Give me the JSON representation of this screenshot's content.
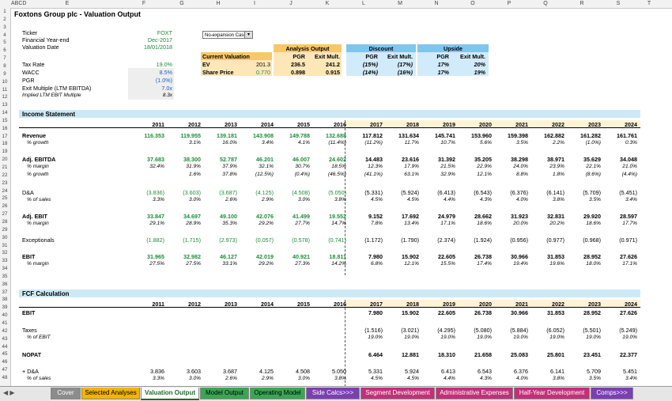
{
  "column_headers": [
    "A",
    "B",
    "C",
    "D",
    "E",
    "F",
    "G",
    "H",
    "I",
    "J",
    "K",
    "L",
    "M",
    "N",
    "O",
    "P",
    "Q",
    "R",
    "S",
    "T"
  ],
  "column_header_labels": [
    "ABCD",
    "E",
    "F",
    "G",
    "H",
    "I",
    "J",
    "K",
    "L",
    "M",
    "N",
    "O",
    "P",
    "Q",
    "R",
    "S",
    "T"
  ],
  "row_numbers": [
    "1",
    "2",
    "3",
    "4",
    "5",
    "6",
    "7",
    "8",
    "9",
    "10",
    "11",
    "12",
    "13",
    "14",
    "15",
    "16",
    "17",
    "18",
    "19",
    "20",
    "21",
    "22",
    "23",
    "24",
    "25",
    "26",
    "27",
    "28",
    "29",
    "30",
    "31",
    "32",
    "33",
    "34",
    "35",
    "36",
    "37",
    "38",
    "39",
    "40",
    "41",
    "42",
    "43",
    "44",
    "45",
    "46",
    "47",
    "48"
  ],
  "title": "Foxtons Group plc - Valuation Output",
  "info": {
    "ticker_label": "Ticker",
    "ticker": "FOXT",
    "fy_label": "Financial Year-end",
    "fy": "Dec-2017",
    "vd_label": "Valuation Date",
    "vd": "18/01/2018",
    "tax_label": "Tax Rate",
    "tax": "19.0%",
    "wacc_label": "WACC",
    "wacc": "8.5%",
    "pgr_label": "PGR",
    "pgr": "(1.0%)",
    "exit_label": "Exit Multiple (LTM EBITDA)",
    "exit": "7.0x",
    "implied_label": "Implied LTM EBIT Multiple",
    "implied": "8.3x"
  },
  "scenario_dropdown": "No-expansion Case",
  "valuation": {
    "current_label": "Current Valuation",
    "ev_label": "EV",
    "ev": "201.3",
    "sp_label": "Share Price",
    "sp": "0.770",
    "analysis_header": "Analysis Output",
    "discount_header": "Discount",
    "upside_header": "Upside",
    "pgr_col": "PGR",
    "exit_col": "Exit Mult.",
    "a_ev_pgr": "236.5",
    "a_ev_exit": "241.2",
    "a_sp_pgr": "0.898",
    "a_sp_exit": "0.915",
    "d_ev_pgr": "(15%)",
    "d_ev_exit": "(17%)",
    "d_sp_pgr": "(14%)",
    "d_sp_exit": "(16%)",
    "u_ev_pgr": "17%",
    "u_ev_exit": "20%",
    "u_sp_pgr": "17%",
    "u_sp_exit": "19%"
  },
  "income_statement": {
    "title": "Income Statement",
    "years": [
      "2011",
      "2012",
      "2013",
      "2014",
      "2015",
      "2016",
      "2017",
      "2018",
      "2019",
      "2020",
      "2021",
      "2022",
      "2023",
      "2024"
    ],
    "rows": [
      {
        "label": "Revenue",
        "bold": true,
        "vals": [
          "116.353",
          "119.955",
          "139.181",
          "143.908",
          "149.788",
          "132.688",
          "117.812",
          "131.634",
          "145.741",
          "153.960",
          "159.398",
          "162.882",
          "161.282",
          "161.761"
        ]
      },
      {
        "label": "% growth",
        "italic": true,
        "vals": [
          "",
          "3.1%",
          "16.0%",
          "3.4%",
          "4.1%",
          "(11.4%)",
          "(11.2%)",
          "11.7%",
          "10.7%",
          "5.6%",
          "3.5%",
          "2.2%",
          "(1.0%)",
          "0.3%"
        ]
      },
      {
        "label": "Adj. EBITDA",
        "bold": true,
        "vals": [
          "37.683",
          "38.300",
          "52.787",
          "46.201",
          "46.007",
          "24.602",
          "14.483",
          "23.616",
          "31.392",
          "35.205",
          "38.298",
          "38.971",
          "35.629",
          "34.048"
        ]
      },
      {
        "label": "% margin",
        "italic": true,
        "vals": [
          "32.4%",
          "31.9%",
          "37.9%",
          "32.1%",
          "30.7%",
          "18.5%",
          "12.3%",
          "17.9%",
          "21.5%",
          "22.9%",
          "24.0%",
          "23.9%",
          "22.1%",
          "21.0%"
        ]
      },
      {
        "label": "% growth",
        "italic": true,
        "vals": [
          "",
          "1.6%",
          "37.8%",
          "(12.5%)",
          "(0.4%)",
          "(46.5%)",
          "(41.1%)",
          "63.1%",
          "32.9%",
          "12.1%",
          "8.8%",
          "1.8%",
          "(8.6%)",
          "(4.4%)"
        ]
      },
      {
        "label": "D&A",
        "vals": [
          "(3.836)",
          "(3.603)",
          "(3.687)",
          "(4.125)",
          "(4.508)",
          "(5.050)",
          "(5.331)",
          "(5.924)",
          "(6.413)",
          "(6.543)",
          "(6.376)",
          "(6.141)",
          "(5.709)",
          "(5.451)"
        ]
      },
      {
        "label": "% of sales",
        "italic": true,
        "vals": [
          "3.3%",
          "3.0%",
          "2.6%",
          "2.9%",
          "3.0%",
          "3.8%",
          "4.5%",
          "4.5%",
          "4.4%",
          "4.3%",
          "4.0%",
          "3.8%",
          "3.5%",
          "3.4%"
        ]
      },
      {
        "label": "Adj. EBIT",
        "bold": true,
        "vals": [
          "33.847",
          "34.697",
          "49.100",
          "42.076",
          "41.499",
          "19.552",
          "9.152",
          "17.692",
          "24.979",
          "28.662",
          "31.923",
          "32.831",
          "29.920",
          "28.597"
        ]
      },
      {
        "label": "% margin",
        "italic": true,
        "vals": [
          "29.1%",
          "28.9%",
          "35.3%",
          "29.2%",
          "27.7%",
          "14.7%",
          "7.8%",
          "13.4%",
          "17.1%",
          "18.6%",
          "20.0%",
          "20.2%",
          "18.6%",
          "17.7%"
        ]
      },
      {
        "label": "Exceptionals",
        "vals": [
          "(1.882)",
          "(1.715)",
          "(2.973)",
          "(0.057)",
          "(0.578)",
          "(0.741)",
          "(1.172)",
          "(1.790)",
          "(2.374)",
          "(1.924)",
          "(0.956)",
          "(0.977)",
          "(0.968)",
          "(0.971)"
        ]
      },
      {
        "label": "EBIT",
        "bold": true,
        "vals": [
          "31.965",
          "32.982",
          "46.127",
          "42.019",
          "40.921",
          "18.811",
          "7.980",
          "15.902",
          "22.605",
          "26.738",
          "30.966",
          "31.853",
          "28.952",
          "27.626"
        ]
      },
      {
        "label": "% margin",
        "italic": true,
        "vals": [
          "27.5%",
          "27.5%",
          "33.1%",
          "29.2%",
          "27.3%",
          "14.2%",
          "6.8%",
          "12.1%",
          "15.5%",
          "17.4%",
          "19.4%",
          "19.6%",
          "18.0%",
          "17.1%"
        ]
      }
    ]
  },
  "fcf": {
    "title": "FCF Calculation",
    "years": [
      "2011",
      "2012",
      "2013",
      "2014",
      "2015",
      "2016",
      "2017",
      "2018",
      "2019",
      "2020",
      "2021",
      "2022",
      "2023",
      "2024"
    ],
    "rows": [
      {
        "label": "EBIT",
        "bold": true,
        "vals": [
          "",
          "",
          "",
          "",
          "",
          "",
          "7.980",
          "15.902",
          "22.605",
          "26.738",
          "30.966",
          "31.853",
          "28.952",
          "27.626"
        ]
      },
      {
        "label": "Taxes",
        "vals": [
          "",
          "",
          "",
          "",
          "",
          "",
          "(1.516)",
          "(3.021)",
          "(4.295)",
          "(5.080)",
          "(5.884)",
          "(6.052)",
          "(5.501)",
          "(5.249)"
        ]
      },
      {
        "label": "% of EBIT",
        "italic": true,
        "vals": [
          "",
          "",
          "",
          "",
          "",
          "",
          "19.0%",
          "19.0%",
          "19.0%",
          "19.0%",
          "19.0%",
          "19.0%",
          "19.0%",
          "19.0%"
        ]
      },
      {
        "label": "NOPAT",
        "bold": true,
        "vals": [
          "",
          "",
          "",
          "",
          "",
          "",
          "6.464",
          "12.881",
          "18.310",
          "21.658",
          "25.083",
          "25.801",
          "23.451",
          "22.377"
        ]
      },
      {
        "label": "+ D&A",
        "vals": [
          "3.836",
          "3.603",
          "3.687",
          "4.125",
          "4.508",
          "5.050",
          "5.331",
          "5.924",
          "6.413",
          "6.543",
          "6.376",
          "6.141",
          "5.709",
          "5.451"
        ]
      },
      {
        "label": "% of sales",
        "italic": true,
        "vals": [
          "3.3%",
          "3.0%",
          "2.6%",
          "2.9%",
          "3.0%",
          "3.8%",
          "4.5%",
          "4.5%",
          "4.4%",
          "4.3%",
          "4.0%",
          "3.8%",
          "3.5%",
          "3.4%"
        ]
      }
    ]
  },
  "tabs": [
    {
      "label": "Cover",
      "color": "#8c8c8c",
      "text": "#fff"
    },
    {
      "label": "Selected Analyses",
      "color": "#f2b400",
      "text": "#000"
    },
    {
      "label": "Valuation Output",
      "color": "#ffffff",
      "text": "#1e6b2e",
      "active": true
    },
    {
      "label": "Model Output",
      "color": "#3aa655",
      "text": "#000"
    },
    {
      "label": "Operating Model",
      "color": "#3aa655",
      "text": "#000"
    },
    {
      "label": "Side Calcs>>>",
      "color": "#7a3fb0",
      "text": "#fff"
    },
    {
      "label": "Segment Development",
      "color": "#c2307a",
      "text": "#fff"
    },
    {
      "label": "Administrative Expenses",
      "color": "#c2307a",
      "text": "#fff"
    },
    {
      "label": "Half-Year Development",
      "color": "#c2307a",
      "text": "#fff"
    },
    {
      "label": "Comps>>>",
      "color": "#7a3fb0",
      "text": "#fff"
    }
  ]
}
